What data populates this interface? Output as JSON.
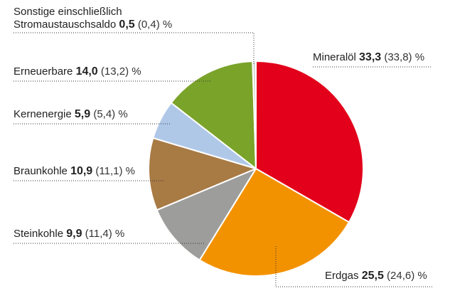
{
  "chart_data": {
    "type": "pie",
    "unit": "%",
    "start_angle_deg": 0,
    "direction": "clockwise",
    "slices": [
      {
        "key": "mineraloel",
        "label": "Mineralöl",
        "value": 33.3,
        "value_text": "33,3",
        "prev_text": "(33,8)",
        "color": "#e2001a"
      },
      {
        "key": "erdgas",
        "label": "Erdgas",
        "value": 25.5,
        "value_text": "25,5",
        "prev_text": "(24,6)",
        "color": "#f39200"
      },
      {
        "key": "steinkohle",
        "label": "Steinkohle",
        "value": 9.9,
        "value_text": "9,9",
        "prev_text": "(11,4)",
        "color": "#9d9d9c"
      },
      {
        "key": "braunkohle",
        "label": "Braunkohle",
        "value": 10.9,
        "value_text": "10,9",
        "prev_text": "(11,1)",
        "color": "#a87a44"
      },
      {
        "key": "kernenergie",
        "label": "Kernenergie",
        "value": 5.9,
        "value_text": "5,9",
        "prev_text": "(5,4)",
        "color": "#b0c8e8"
      },
      {
        "key": "erneuerbare",
        "label": "Erneuerbare",
        "value": 14.0,
        "value_text": "14,0",
        "prev_text": "(13,2)",
        "color": "#7aa32a"
      },
      {
        "key": "sonstige",
        "label_line1": "Sonstige einschließlich",
        "label_line2": "Stromaustauschsaldo",
        "value": 0.5,
        "value_text": "0,5",
        "prev_text": "(0,4)",
        "color": "#d9d9d9"
      }
    ]
  }
}
